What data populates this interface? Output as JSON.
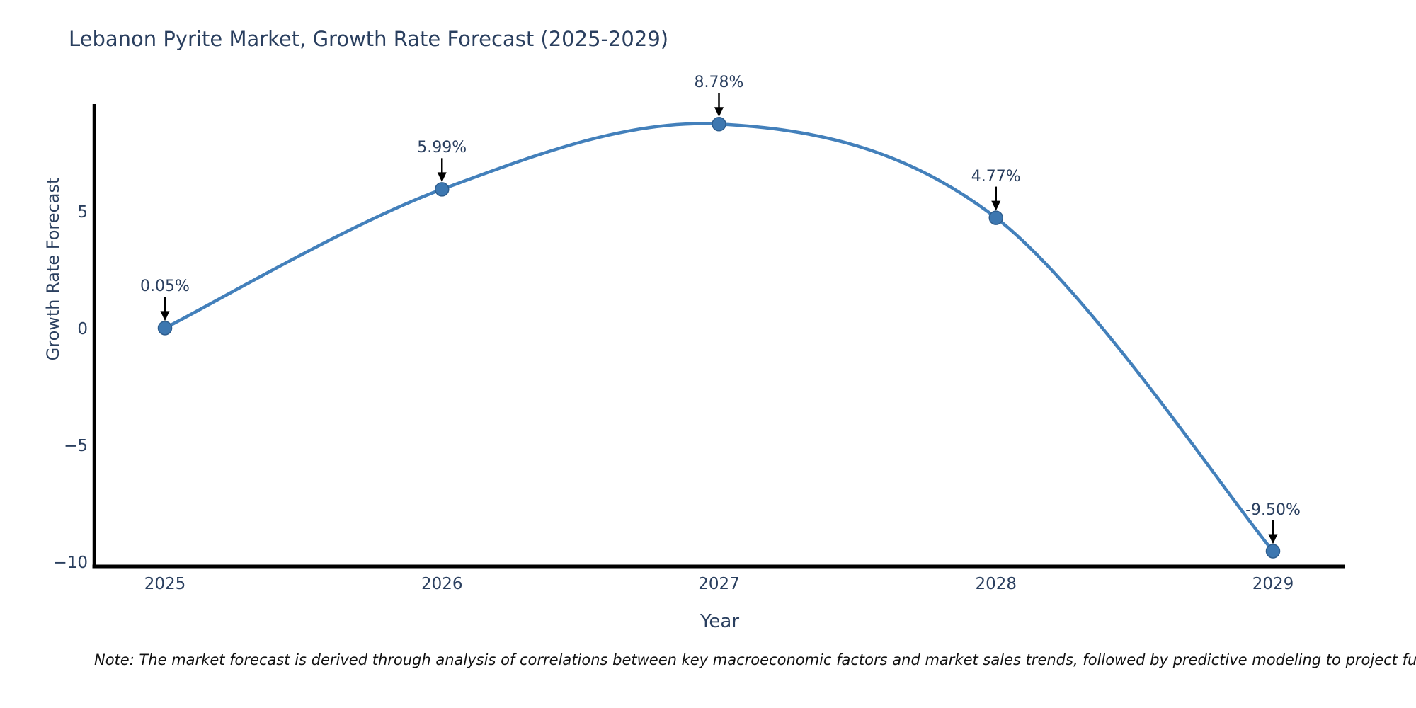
{
  "note": "Note: The market forecast is derived through analysis of correlations between key macroeconomic factors and market sales trends, followed by predictive modeling to project future sales.",
  "chart_data": {
    "type": "line",
    "line_shape": "spline",
    "title": "Lebanon Pyrite Market, Growth Rate Forecast (2025-2029)",
    "xlabel": "Year",
    "ylabel": "Growth Rate Forecast",
    "categories": [
      "2025",
      "2026",
      "2027",
      "2028",
      "2029"
    ],
    "values": [
      0.05,
      5.99,
      8.78,
      4.77,
      -9.5
    ],
    "point_labels": [
      "0.05%",
      "5.99%",
      "8.78%",
      "4.77%",
      "-9.50%"
    ],
    "yticks": [
      {
        "label": "5",
        "value": 5
      },
      {
        "label": "0",
        "value": 0
      },
      {
        "label": "−5",
        "value": -5
      },
      {
        "label": "−10",
        "value": -10
      }
    ],
    "ylim": [
      -10.2,
      9.6
    ],
    "grid": false,
    "legend": false,
    "colors": {
      "line": "#4380bb",
      "marker_fill": "#3d77b0",
      "marker_edge": "#2d5d8e",
      "annotation_arrow": "#000000",
      "axis_line": "#000000",
      "text": "#2a3f5f"
    }
  }
}
